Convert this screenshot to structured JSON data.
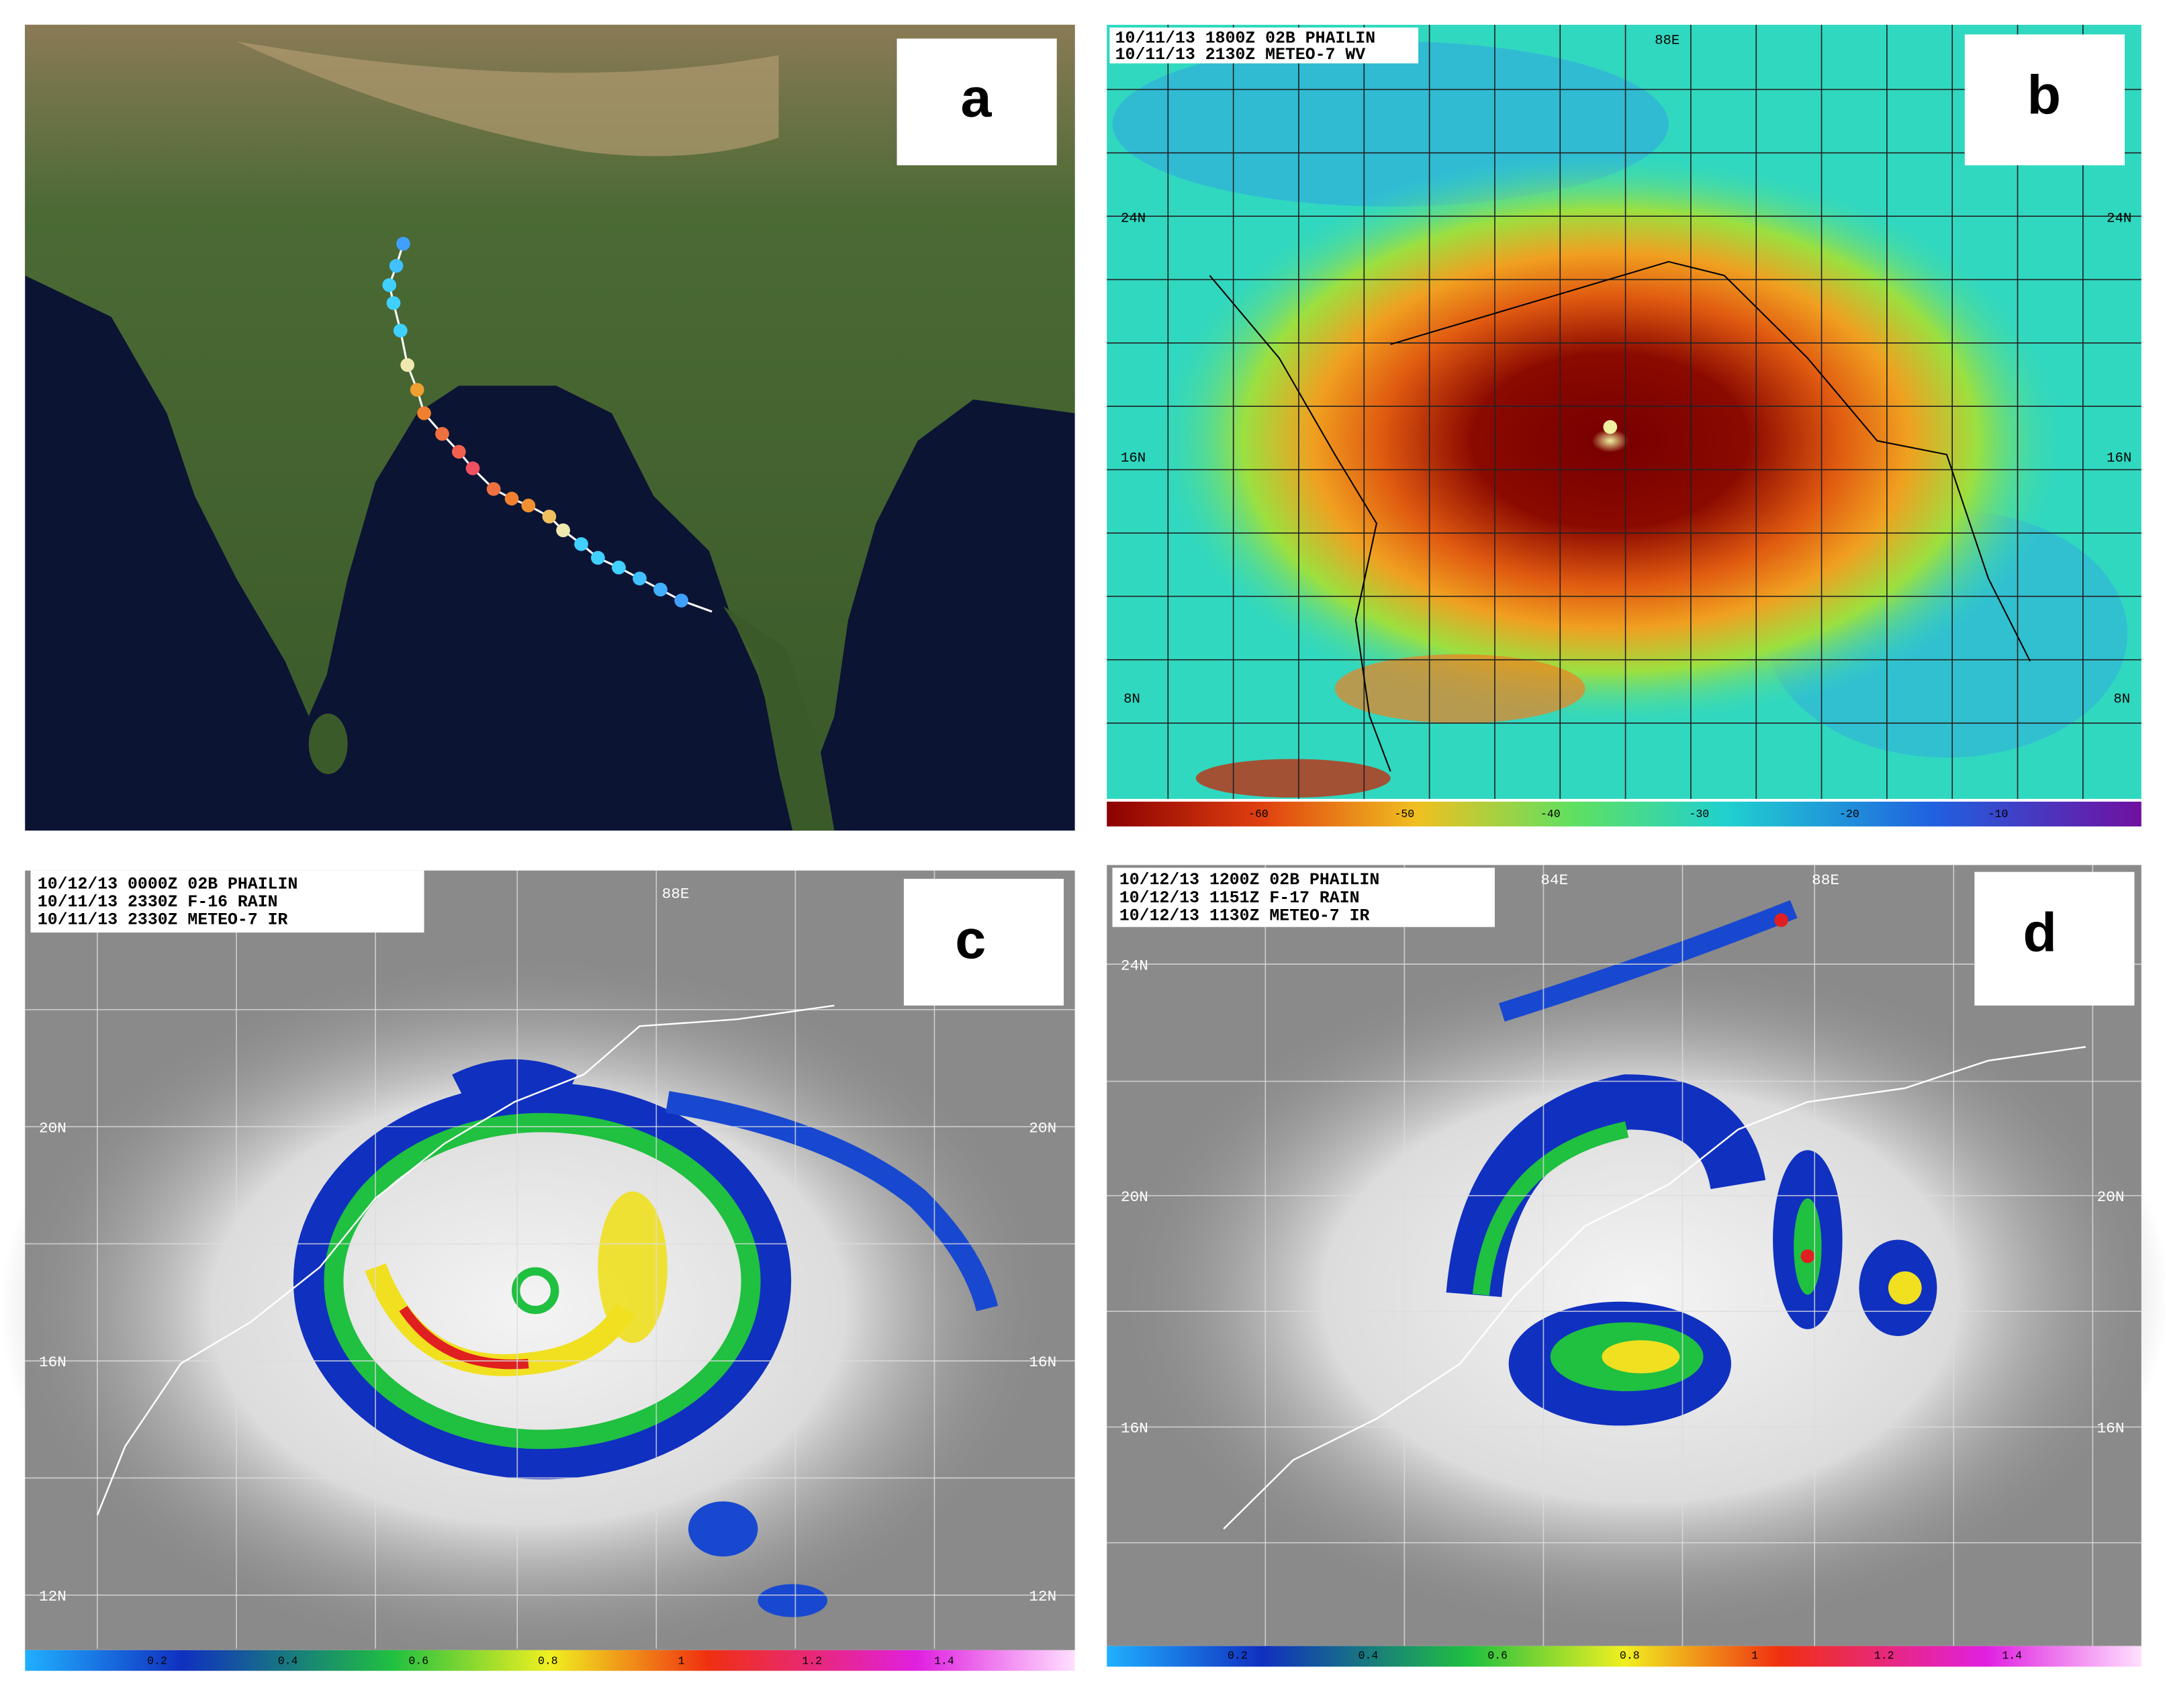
{
  "panels": [
    {
      "label": "a"
    },
    {
      "label": "b",
      "header": [
        "10/11/13 1800Z  02B PHAILIN",
        "10/11/13 2130Z  METEO-7 WV"
      ],
      "lon_labels": [
        "88E"
      ],
      "lat_labels": [
        "24N",
        "16N",
        "8N"
      ],
      "colorbar": [
        "-60",
        "-50",
        "-40",
        "-30",
        "-20",
        "-10"
      ]
    },
    {
      "label": "c",
      "header": [
        "10/12/13 0000Z 02B PHAILIN",
        "10/11/13 2330Z F-16 RAIN",
        "10/11/13 2330Z METEO-7 IR"
      ],
      "lon_labels": [
        "88E"
      ],
      "lat_labels": [
        "20N",
        "16N",
        "12N"
      ],
      "colorbar": [
        "0.2",
        "0.4",
        "0.6",
        "0.8",
        "1",
        "1.2",
        "1.4"
      ]
    },
    {
      "label": "d",
      "header": [
        "10/12/13 1200Z 02B PHAILIN",
        "10/12/13 1151Z F-17 RAIN",
        "10/12/13 1130Z METEO-7 IR"
      ],
      "lon_labels": [
        "84E",
        "88E"
      ],
      "lat_labels": [
        "24N",
        "20N",
        "16N"
      ],
      "colorbar": [
        "0.2",
        "0.4",
        "0.6",
        "0.8",
        "1",
        "1.2",
        "1.4"
      ]
    }
  ]
}
